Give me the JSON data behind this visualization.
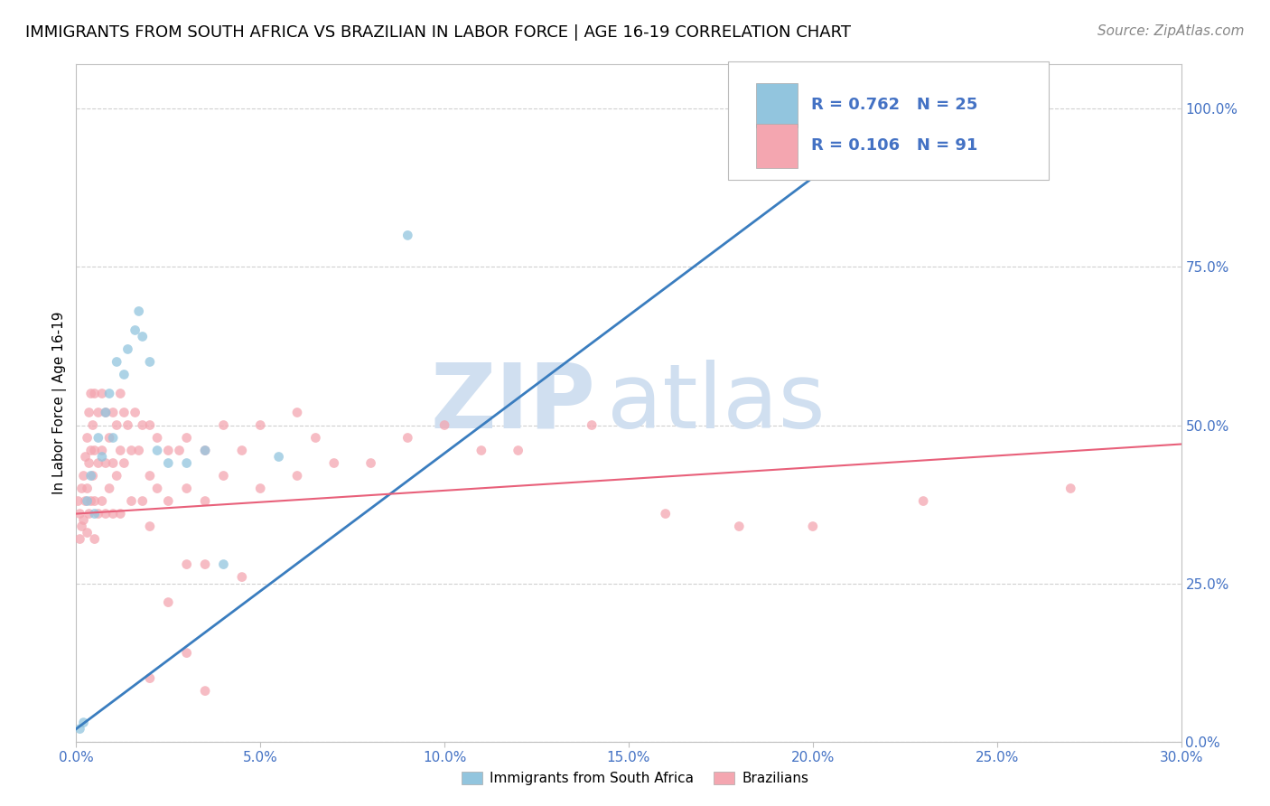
{
  "title": "IMMIGRANTS FROM SOUTH AFRICA VS BRAZILIAN IN LABOR FORCE | AGE 16-19 CORRELATION CHART",
  "source": "Source: ZipAtlas.com",
  "ylabel": "In Labor Force | Age 16-19",
  "x_tick_labels": [
    "0.0%",
    "5.0%",
    "10.0%",
    "15.0%",
    "20.0%",
    "25.0%",
    "30.0%"
  ],
  "x_tick_vals": [
    0.0,
    5.0,
    10.0,
    15.0,
    20.0,
    25.0,
    30.0
  ],
  "y_tick_labels": [
    "0.0%",
    "25.0%",
    "50.0%",
    "75.0%",
    "100.0%"
  ],
  "y_tick_vals": [
    0.0,
    25.0,
    50.0,
    75.0,
    100.0
  ],
  "xlim": [
    0.0,
    30.0
  ],
  "ylim": [
    0.0,
    107.0
  ],
  "legend_labels": [
    "Immigrants from South Africa",
    "Brazilians"
  ],
  "blue_color": "#92c5de",
  "pink_color": "#f4a6b0",
  "blue_line_color": "#3a7dbf",
  "pink_line_color": "#e8607a",
  "blue_scatter": [
    [
      0.1,
      2.0
    ],
    [
      0.2,
      3.0
    ],
    [
      0.3,
      38.0
    ],
    [
      0.4,
      42.0
    ],
    [
      0.5,
      36.0
    ],
    [
      0.6,
      48.0
    ],
    [
      0.7,
      45.0
    ],
    [
      0.8,
      52.0
    ],
    [
      0.9,
      55.0
    ],
    [
      1.0,
      48.0
    ],
    [
      1.1,
      60.0
    ],
    [
      1.3,
      58.0
    ],
    [
      1.4,
      62.0
    ],
    [
      1.6,
      65.0
    ],
    [
      1.7,
      68.0
    ],
    [
      1.8,
      64.0
    ],
    [
      2.0,
      60.0
    ],
    [
      2.2,
      46.0
    ],
    [
      2.5,
      44.0
    ],
    [
      3.0,
      44.0
    ],
    [
      3.5,
      46.0
    ],
    [
      4.0,
      28.0
    ],
    [
      5.5,
      45.0
    ],
    [
      9.0,
      80.0
    ],
    [
      22.5,
      100.0
    ]
  ],
  "pink_scatter": [
    [
      0.05,
      38.0
    ],
    [
      0.1,
      36.0
    ],
    [
      0.1,
      32.0
    ],
    [
      0.15,
      40.0
    ],
    [
      0.15,
      34.0
    ],
    [
      0.2,
      42.0
    ],
    [
      0.2,
      35.0
    ],
    [
      0.25,
      45.0
    ],
    [
      0.25,
      38.0
    ],
    [
      0.3,
      48.0
    ],
    [
      0.3,
      40.0
    ],
    [
      0.3,
      33.0
    ],
    [
      0.35,
      52.0
    ],
    [
      0.35,
      44.0
    ],
    [
      0.35,
      36.0
    ],
    [
      0.4,
      55.0
    ],
    [
      0.4,
      46.0
    ],
    [
      0.4,
      38.0
    ],
    [
      0.45,
      50.0
    ],
    [
      0.45,
      42.0
    ],
    [
      0.5,
      55.0
    ],
    [
      0.5,
      46.0
    ],
    [
      0.5,
      38.0
    ],
    [
      0.5,
      32.0
    ],
    [
      0.6,
      52.0
    ],
    [
      0.6,
      44.0
    ],
    [
      0.6,
      36.0
    ],
    [
      0.7,
      55.0
    ],
    [
      0.7,
      46.0
    ],
    [
      0.7,
      38.0
    ],
    [
      0.8,
      52.0
    ],
    [
      0.8,
      44.0
    ],
    [
      0.8,
      36.0
    ],
    [
      0.9,
      48.0
    ],
    [
      0.9,
      40.0
    ],
    [
      1.0,
      52.0
    ],
    [
      1.0,
      44.0
    ],
    [
      1.0,
      36.0
    ],
    [
      1.1,
      50.0
    ],
    [
      1.1,
      42.0
    ],
    [
      1.2,
      55.0
    ],
    [
      1.2,
      46.0
    ],
    [
      1.2,
      36.0
    ],
    [
      1.3,
      52.0
    ],
    [
      1.3,
      44.0
    ],
    [
      1.4,
      50.0
    ],
    [
      1.5,
      46.0
    ],
    [
      1.5,
      38.0
    ],
    [
      1.6,
      52.0
    ],
    [
      1.7,
      46.0
    ],
    [
      1.8,
      50.0
    ],
    [
      1.8,
      38.0
    ],
    [
      2.0,
      50.0
    ],
    [
      2.0,
      42.0
    ],
    [
      2.0,
      34.0
    ],
    [
      2.2,
      48.0
    ],
    [
      2.2,
      40.0
    ],
    [
      2.5,
      46.0
    ],
    [
      2.5,
      38.0
    ],
    [
      2.8,
      46.0
    ],
    [
      3.0,
      48.0
    ],
    [
      3.0,
      40.0
    ],
    [
      3.5,
      46.0
    ],
    [
      3.5,
      38.0
    ],
    [
      3.5,
      28.0
    ],
    [
      4.0,
      50.0
    ],
    [
      4.0,
      42.0
    ],
    [
      4.5,
      46.0
    ],
    [
      5.0,
      50.0
    ],
    [
      5.0,
      40.0
    ],
    [
      6.0,
      52.0
    ],
    [
      6.0,
      42.0
    ],
    [
      6.5,
      48.0
    ],
    [
      7.0,
      44.0
    ],
    [
      8.0,
      44.0
    ],
    [
      9.0,
      48.0
    ],
    [
      10.0,
      50.0
    ],
    [
      11.0,
      46.0
    ],
    [
      12.0,
      46.0
    ],
    [
      14.0,
      50.0
    ],
    [
      16.0,
      36.0
    ],
    [
      18.0,
      34.0
    ],
    [
      20.0,
      34.0
    ],
    [
      23.0,
      38.0
    ],
    [
      27.0,
      40.0
    ],
    [
      3.0,
      14.0
    ],
    [
      2.5,
      22.0
    ],
    [
      3.0,
      28.0
    ],
    [
      4.5,
      26.0
    ],
    [
      2.0,
      10.0
    ],
    [
      3.5,
      8.0
    ]
  ],
  "blue_line": {
    "x0": 0.0,
    "y0": 2.0,
    "x1": 22.5,
    "y1": 100.0
  },
  "pink_line": {
    "x0": 0.0,
    "y0": 36.0,
    "x1": 30.0,
    "y1": 47.0
  },
  "watermark_zip": "ZIP",
  "watermark_atlas": "atlas",
  "watermark_color": "#d0dff0",
  "title_fontsize": 13,
  "axis_label_fontsize": 11,
  "tick_fontsize": 11,
  "source_fontsize": 11,
  "marker_size": 60,
  "background_color": "#ffffff",
  "grid_color": "#d0d0d0",
  "tick_color": "#4472c4",
  "axis_color": "#c0c0c0",
  "legend_R_blue": "R = 0.762",
  "legend_N_blue": "N = 25",
  "legend_R_pink": "R = 0.106",
  "legend_N_pink": "N = 91"
}
